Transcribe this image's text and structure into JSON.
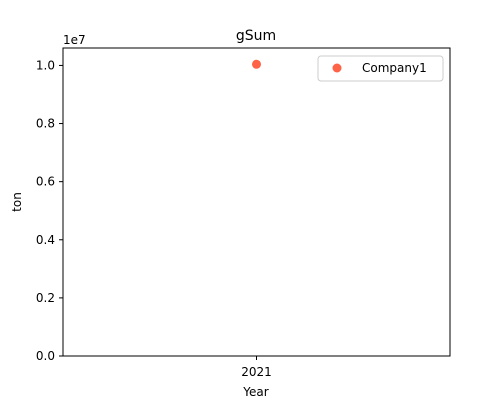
{
  "chart_data": {
    "type": "scatter",
    "title": "gSum",
    "xlabel": "Year",
    "ylabel": "ton",
    "x_categories": [
      "2021"
    ],
    "ylim": [
      0,
      10600000
    ],
    "yticks": [
      0,
      2000000,
      4000000,
      6000000,
      8000000,
      10000000
    ],
    "ytick_labels": [
      "0.0",
      "0.2",
      "0.4",
      "0.6",
      "0.8",
      "1.0"
    ],
    "y_offset_label": "1e7",
    "grid": false,
    "legend_position": "top-right",
    "series": [
      {
        "name": "Company1",
        "color": "#ff6347",
        "points": [
          {
            "x": "2021",
            "y": 10040000
          }
        ]
      }
    ]
  }
}
